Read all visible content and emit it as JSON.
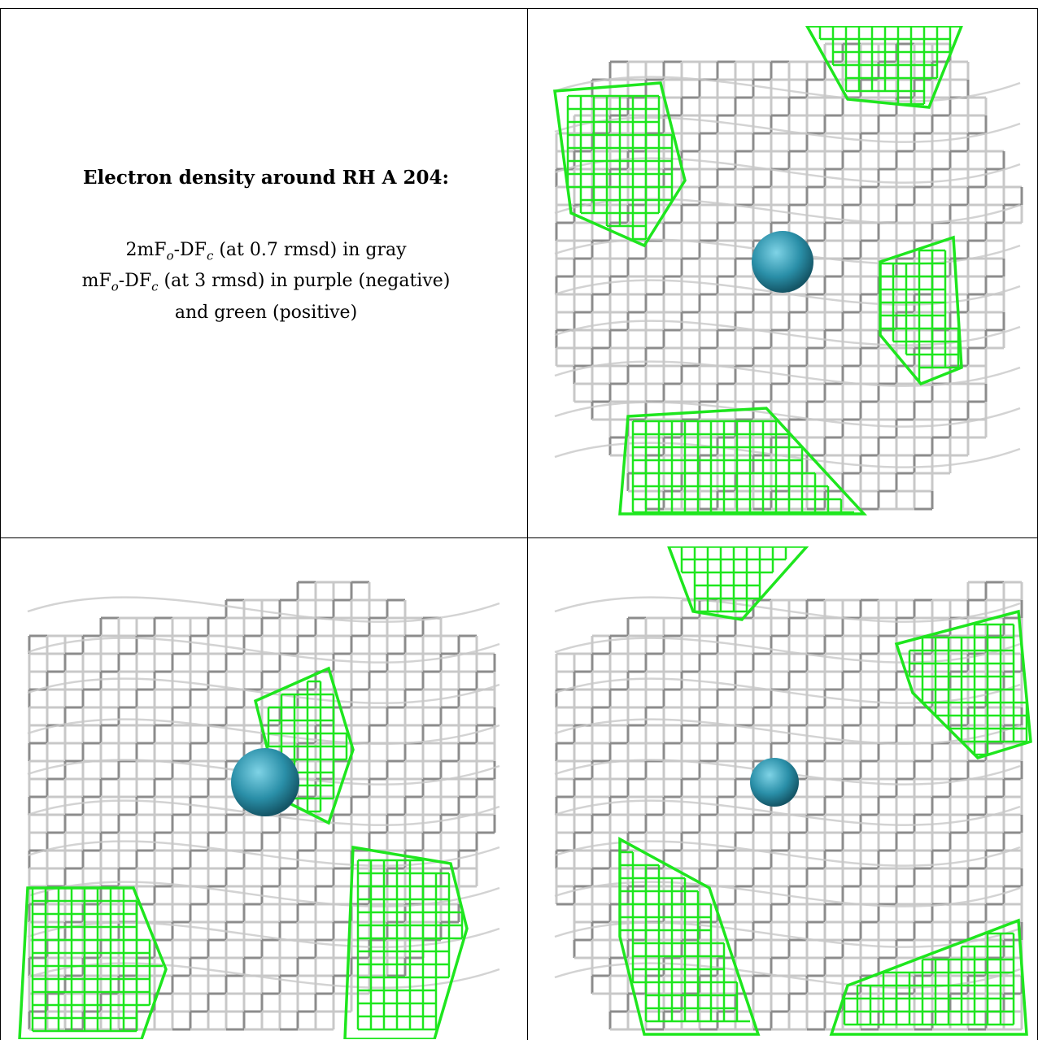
{
  "caption": {
    "title": "Electron density around RH A 204:",
    "line1_prefix": "2mF",
    "line1_sub1": "o",
    "line1_mid": "-DF",
    "line1_sub2": "c",
    "line1_suffix": " (at 0.7 rmsd) in gray",
    "line2_prefix": "mF",
    "line2_sub1": "o",
    "line2_mid": "-DF",
    "line2_sub2": "c",
    "line2_suffix": " (at 3 rmsd) in purple (negative)",
    "line3": "and green (positive)"
  },
  "colors": {
    "gray_mesh": "#8c8c8c",
    "gray_light": "#c8c8c8",
    "green_mesh": "#1ee61e",
    "atom": "#2a8fa8"
  }
}
